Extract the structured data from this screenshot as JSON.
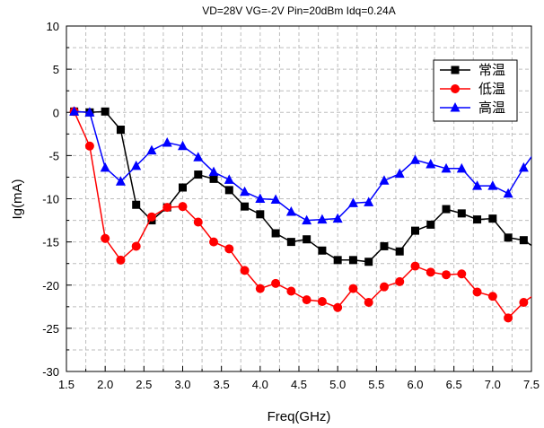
{
  "chart_data": {
    "type": "line",
    "title": "VD=28V  VG=-2V  Pin=20dBm  Idq=0.24A",
    "xlabel": "Freq(GHz)",
    "ylabel": "Ig(mA)",
    "xlim": [
      1.5,
      7.5
    ],
    "ylim": [
      -30,
      10
    ],
    "x_ticks": [
      1.5,
      2.0,
      2.5,
      3.0,
      3.5,
      4.0,
      4.5,
      5.0,
      5.5,
      6.0,
      6.5,
      7.0,
      7.5
    ],
    "x_tick_labels": [
      "1.5",
      "2.0",
      "2.5",
      "3.0",
      "3.5",
      "4.0",
      "4.5",
      "5.0",
      "5.5",
      "6.0",
      "6.5",
      "7.0",
      "7.5"
    ],
    "y_ticks": [
      10,
      5,
      0,
      -5,
      -10,
      -15,
      -20,
      -25,
      -30
    ],
    "y_tick_labels": [
      "10",
      "5",
      "0",
      "-5",
      "-10",
      "-15",
      "-20",
      "-25",
      "-30"
    ],
    "grid": true,
    "legend_position": "top-right",
    "x": [
      1.6,
      1.8,
      2.0,
      2.2,
      2.4,
      2.6,
      2.8,
      3.0,
      3.2,
      3.4,
      3.6,
      3.8,
      4.0,
      4.2,
      4.4,
      4.6,
      4.8,
      5.0,
      5.2,
      5.4,
      5.6,
      5.8,
      6.0,
      6.2,
      6.4,
      6.6,
      6.8,
      7.0,
      7.2,
      7.4,
      7.6
    ],
    "series": [
      {
        "name": "常温",
        "color": "#000000",
        "marker": "square",
        "values": [
          0.1,
          0,
          0.1,
          -2,
          -10.7,
          -12.5,
          -11,
          -8.7,
          -7.2,
          -7.7,
          -9,
          -10.9,
          -11.8,
          -14,
          -15,
          -14.7,
          -16,
          -17.1,
          -17.1,
          -17.3,
          -15.5,
          -16.1,
          -13.7,
          -13,
          -11.2,
          -11.7,
          -12.4,
          -12.3,
          -14.5,
          -14.8,
          -16
        ]
      },
      {
        "name": "低温",
        "color": "#ff0000",
        "marker": "circle",
        "values": [
          0.1,
          -3.9,
          -14.6,
          -17.1,
          -15.5,
          -12.1,
          -11,
          -10.9,
          -12.7,
          -15,
          -15.8,
          -18.3,
          -20.4,
          -19.8,
          -20.7,
          -21.7,
          -21.9,
          -22.6,
          -20.4,
          -22,
          -20.2,
          -19.6,
          -17.8,
          -18.5,
          -18.8,
          -18.7,
          -20.8,
          -21.3,
          -23.8,
          -22,
          -20.7
        ]
      },
      {
        "name": "高温",
        "color": "#0000ff",
        "marker": "triangle",
        "values": [
          0.1,
          0,
          -6.4,
          -8,
          -6.2,
          -4.4,
          -3.5,
          -3.9,
          -5.2,
          -6.9,
          -7.8,
          -9.2,
          -10,
          -10.1,
          -11.5,
          -12.5,
          -12.4,
          -12.3,
          -10.5,
          -10.4,
          -7.9,
          -7.1,
          -5.5,
          -6,
          -6.5,
          -6.5,
          -8.5,
          -8.5,
          -9.4,
          -6.4,
          -3.9
        ]
      }
    ]
  }
}
